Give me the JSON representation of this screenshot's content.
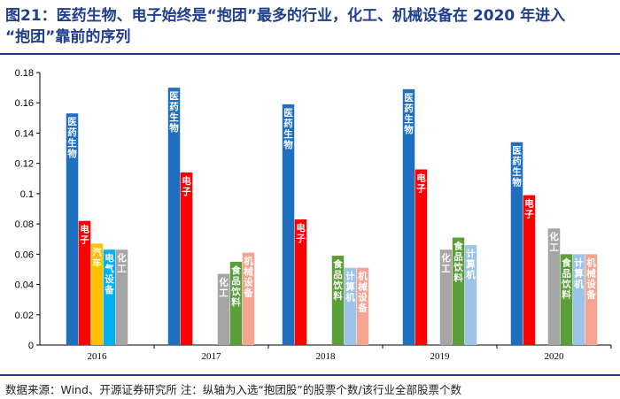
{
  "header": {
    "title_line1": "图21：医药生物、电子始终是“抱团”最多的行业，化工、机械设备在 2020 年进入",
    "title_line2": "“抱团”靠前的序列"
  },
  "footer": {
    "source": "数据来源：Wind、开源证券研究所 注：纵轴为入选“抱团股”的股票个数/该行业全部股票个数"
  },
  "chart_data": {
    "type": "bar",
    "categories": [
      "2016",
      "2017",
      "2018",
      "2019",
      "2020"
    ],
    "ylim": [
      0,
      0.18
    ],
    "yticks": [
      "0",
      "0.02",
      "0.04",
      "0.06",
      "0.08",
      "0.1",
      "0.12",
      "0.14",
      "0.16",
      "0.18"
    ],
    "grid": false,
    "groups": [
      {
        "year": "2016",
        "bars": [
          {
            "label": "医药生物",
            "value": 0.153,
            "color": "#1f6fc1"
          },
          {
            "label": "电子",
            "value": 0.082,
            "color": "#ff0000"
          },
          {
            "label": "汽车",
            "value": 0.067,
            "color": "#ffc000"
          },
          {
            "label": "电气设备",
            "value": 0.063,
            "color": "#00b0f0"
          },
          {
            "label": "化工",
            "value": 0.063,
            "color": "#a5a5a5"
          }
        ]
      },
      {
        "year": "2017",
        "bars": [
          {
            "label": "医药生物",
            "value": 0.17,
            "color": "#1f6fc1"
          },
          {
            "label": "电子",
            "value": 0.114,
            "color": "#ff0000"
          },
          {
            "label": "化工",
            "value": 0.047,
            "color": "#a5a5a5"
          },
          {
            "label": "食品饮料",
            "value": 0.055,
            "color": "#5b9f3a"
          },
          {
            "label": "机械设备",
            "value": 0.061,
            "color": "#f4a490"
          }
        ]
      },
      {
        "year": "2018",
        "bars": [
          {
            "label": "医药生物",
            "value": 0.159,
            "color": "#1f6fc1"
          },
          {
            "label": "电子",
            "value": 0.083,
            "color": "#ff0000"
          },
          {
            "label": "食品饮料",
            "value": 0.059,
            "color": "#5b9f3a"
          },
          {
            "label": "计算机",
            "value": 0.051,
            "color": "#9dc3e6"
          },
          {
            "label": "机械设备",
            "value": 0.051,
            "color": "#f4a490"
          }
        ]
      },
      {
        "year": "2019",
        "bars": [
          {
            "label": "医药生物",
            "value": 0.169,
            "color": "#1f6fc1"
          },
          {
            "label": "电子",
            "value": 0.116,
            "color": "#ff0000"
          },
          {
            "label": "化工",
            "value": 0.063,
            "color": "#a5a5a5"
          },
          {
            "label": "食品饮料",
            "value": 0.071,
            "color": "#5b9f3a"
          },
          {
            "label": "计算机",
            "value": 0.066,
            "color": "#9dc3e6"
          }
        ]
      },
      {
        "year": "2020",
        "bars": [
          {
            "label": "医药生物",
            "value": 0.134,
            "color": "#1f6fc1"
          },
          {
            "label": "电子",
            "value": 0.099,
            "color": "#ff0000"
          },
          {
            "label": "化工",
            "value": 0.077,
            "color": "#a5a5a5"
          },
          {
            "label": "食品饮料",
            "value": 0.06,
            "color": "#5b9f3a"
          },
          {
            "label": "计算机",
            "value": 0.06,
            "color": "#9dc3e6"
          },
          {
            "label": "机械设备",
            "value": 0.06,
            "color": "#f4a490"
          }
        ]
      }
    ]
  }
}
